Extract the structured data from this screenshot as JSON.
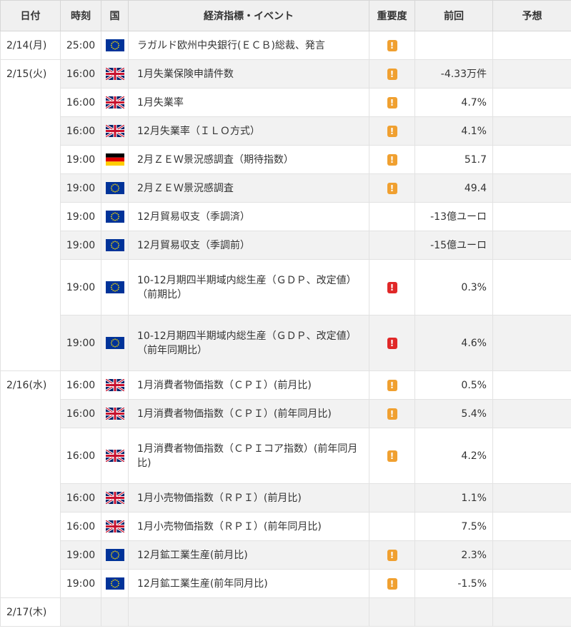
{
  "headers": {
    "date": "日付",
    "time": "時刻",
    "country": "国",
    "event": "経済指標・イベント",
    "importance": "重要度",
    "previous": "前回",
    "forecast": "予想"
  },
  "colors": {
    "header_bg": "#f0f0f0",
    "stripe_bg": "#f2f2f2",
    "importance_medium": "#f0a030",
    "importance_high": "#e02828"
  },
  "groups": [
    {
      "date": "2/14(月)",
      "rows": [
        {
          "time": "25:00",
          "flag": "eu-flag-icon",
          "event": "ラガルド欧州中央銀行(ＥＣＢ)総裁、発言",
          "importance": "!",
          "importance_level": "medium",
          "previous": "",
          "forecast": ""
        }
      ]
    },
    {
      "date": "2/15(火)",
      "rows": [
        {
          "time": "16:00",
          "flag": "uk-flag-icon",
          "event": "1月失業保険申請件数",
          "importance": "!",
          "importance_level": "medium",
          "previous": "-4.33万件",
          "forecast": ""
        },
        {
          "time": "16:00",
          "flag": "uk-flag-icon",
          "event": "1月失業率",
          "importance": "!",
          "importance_level": "medium",
          "previous": "4.7%",
          "forecast": ""
        },
        {
          "time": "16:00",
          "flag": "uk-flag-icon",
          "event": "12月失業率（ＩＬＯ方式）",
          "importance": "!",
          "importance_level": "medium",
          "previous": "4.1%",
          "forecast": ""
        },
        {
          "time": "19:00",
          "flag": "de-flag-icon",
          "event": "2月ＺＥＷ景況感調査（期待指数）",
          "importance": "!",
          "importance_level": "medium",
          "previous": "51.7",
          "forecast": ""
        },
        {
          "time": "19:00",
          "flag": "eu-flag-icon",
          "event": "2月ＺＥＷ景況感調査",
          "importance": "!",
          "importance_level": "medium",
          "previous": "49.4",
          "forecast": ""
        },
        {
          "time": "19:00",
          "flag": "eu-flag-icon",
          "event": "12月貿易収支（季調済）",
          "importance": "",
          "importance_level": "none",
          "previous": "-13億ユーロ",
          "forecast": ""
        },
        {
          "time": "19:00",
          "flag": "eu-flag-icon",
          "event": "12月貿易収支（季調前）",
          "importance": "",
          "importance_level": "none",
          "previous": "-15億ユーロ",
          "forecast": ""
        },
        {
          "time": "19:00",
          "flag": "eu-flag-icon",
          "event": "10-12月期四半期域内総生産（ＧＤＰ、改定値）（前期比）",
          "importance": "!",
          "importance_level": "high",
          "previous": "0.3%",
          "forecast": "",
          "tall": true
        },
        {
          "time": "19:00",
          "flag": "eu-flag-icon",
          "event": "10-12月期四半期域内総生産（ＧＤＰ、改定値）（前年同期比）",
          "importance": "!",
          "importance_level": "high",
          "previous": "4.6%",
          "forecast": "",
          "tall": true
        }
      ]
    },
    {
      "date": "2/16(水)",
      "rows": [
        {
          "time": "16:00",
          "flag": "uk-flag-icon",
          "event": "1月消費者物価指数（ＣＰＩ）(前月比)",
          "importance": "!",
          "importance_level": "medium",
          "previous": "0.5%",
          "forecast": ""
        },
        {
          "time": "16:00",
          "flag": "uk-flag-icon",
          "event": "1月消費者物価指数（ＣＰＩ）(前年同月比)",
          "importance": "!",
          "importance_level": "medium",
          "previous": "5.4%",
          "forecast": ""
        },
        {
          "time": "16:00",
          "flag": "uk-flag-icon",
          "event": "1月消費者物価指数（ＣＰＩコア指数）(前年同月比)",
          "importance": "!",
          "importance_level": "medium",
          "previous": "4.2%",
          "forecast": "",
          "tall": true
        },
        {
          "time": "16:00",
          "flag": "uk-flag-icon",
          "event": "1月小売物価指数（ＲＰＩ）(前月比)",
          "importance": "",
          "importance_level": "none",
          "previous": "1.1%",
          "forecast": ""
        },
        {
          "time": "16:00",
          "flag": "uk-flag-icon",
          "event": "1月小売物価指数（ＲＰＩ）(前年同月比)",
          "importance": "",
          "importance_level": "none",
          "previous": "7.5%",
          "forecast": ""
        },
        {
          "time": "19:00",
          "flag": "eu-flag-icon",
          "event": "12月鉱工業生産(前月比)",
          "importance": "!",
          "importance_level": "medium",
          "previous": "2.3%",
          "forecast": ""
        },
        {
          "time": "19:00",
          "flag": "eu-flag-icon",
          "event": "12月鉱工業生産(前年同月比)",
          "importance": "!",
          "importance_level": "medium",
          "previous": "-1.5%",
          "forecast": ""
        }
      ]
    },
    {
      "date": "2/17(木)",
      "rows": [
        {
          "time": "",
          "flag": "",
          "event": "",
          "importance": "",
          "importance_level": "none",
          "previous": "",
          "forecast": ""
        }
      ]
    }
  ]
}
